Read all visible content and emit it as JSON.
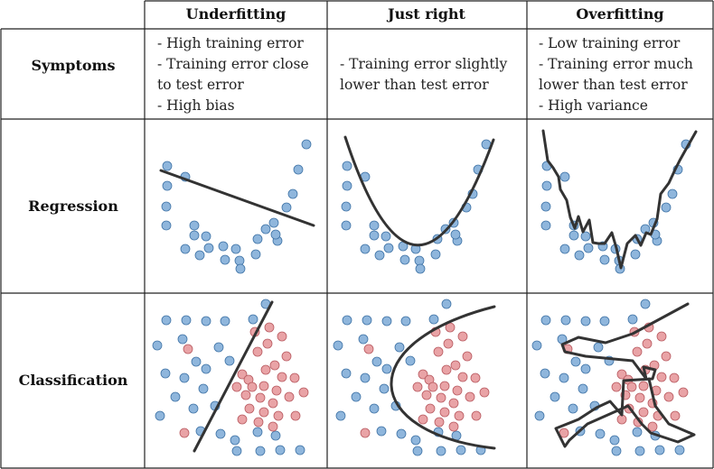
{
  "columns": [
    "Underfitting",
    "Just right",
    "Overfitting"
  ],
  "rows": [
    "Symptoms",
    "Regression",
    "Classification"
  ],
  "symptoms": {
    "underfitting": [
      "- High training error",
      "- Training error close",
      "to test error",
      "- High bias"
    ],
    "just_right": [
      "- Training error slightly",
      "lower than test error"
    ],
    "overfitting": [
      "- Low training error",
      "- Training error much",
      "lower than test error",
      "- High variance"
    ]
  },
  "colors": {
    "class_a": "#8fb6dc",
    "class_b": "#e9a3a6",
    "model_line": "#333333"
  }
}
